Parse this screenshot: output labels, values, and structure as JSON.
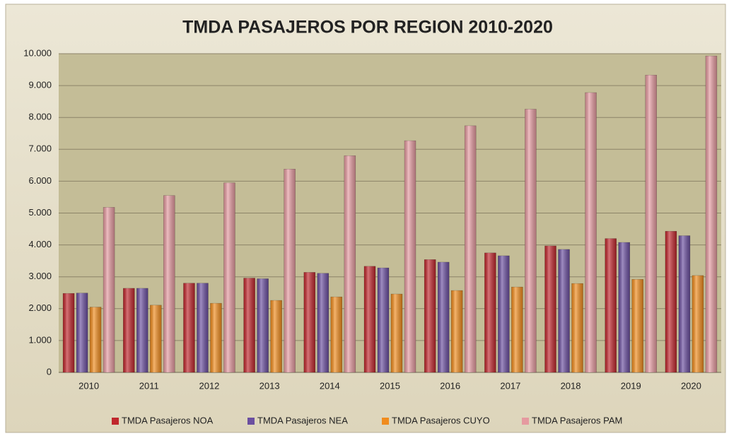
{
  "chart_data": {
    "type": "bar",
    "title": "TMDA PASAJEROS POR REGION 2010-2020",
    "categories": [
      "2010",
      "2011",
      "2012",
      "2013",
      "2014",
      "2015",
      "2016",
      "2017",
      "2018",
      "2019",
      "2020"
    ],
    "series": [
      {
        "name": "TMDA Pasajeros NOA",
        "color": "#c0272d",
        "values": [
          2480,
          2640,
          2800,
          2960,
          3140,
          3330,
          3540,
          3750,
          3970,
          4200,
          4430
        ]
      },
      {
        "name": "TMDA Pasajeros NEA",
        "color": "#6b4fa0",
        "values": [
          2490,
          2640,
          2800,
          2940,
          3110,
          3280,
          3460,
          3660,
          3860,
          4080,
          4290
        ]
      },
      {
        "name": "TMDA Pasajeros CUYO",
        "color": "#f08c1e",
        "values": [
          2050,
          2110,
          2170,
          2260,
          2370,
          2460,
          2570,
          2680,
          2790,
          2920,
          3040
        ]
      },
      {
        "name": "TMDA Pasajeros PAM",
        "color": "#e59aa0",
        "values": [
          5180,
          5550,
          5950,
          6380,
          6800,
          7270,
          7740,
          8260,
          8780,
          9330,
          9930
        ]
      }
    ],
    "ylim": [
      0,
      10000
    ],
    "yticks": [
      0,
      {
        "value": 1000,
        "label": "1.000"
      },
      {
        "value": 2000,
        "label": "2.000"
      },
      {
        "value": 3000,
        "label": "3.000"
      },
      {
        "value": 4000,
        "label": "4.000"
      },
      {
        "value": 5000,
        "label": "5.000"
      },
      {
        "value": 6000,
        "label": "6.000"
      },
      {
        "value": 7000,
        "label": "7.000"
      },
      {
        "value": 8000,
        "label": "8.000"
      },
      {
        "value": 9000,
        "label": "9.000"
      },
      {
        "value": 10000,
        "label": "10.000"
      }
    ],
    "grid": true,
    "legend": "bottom"
  }
}
